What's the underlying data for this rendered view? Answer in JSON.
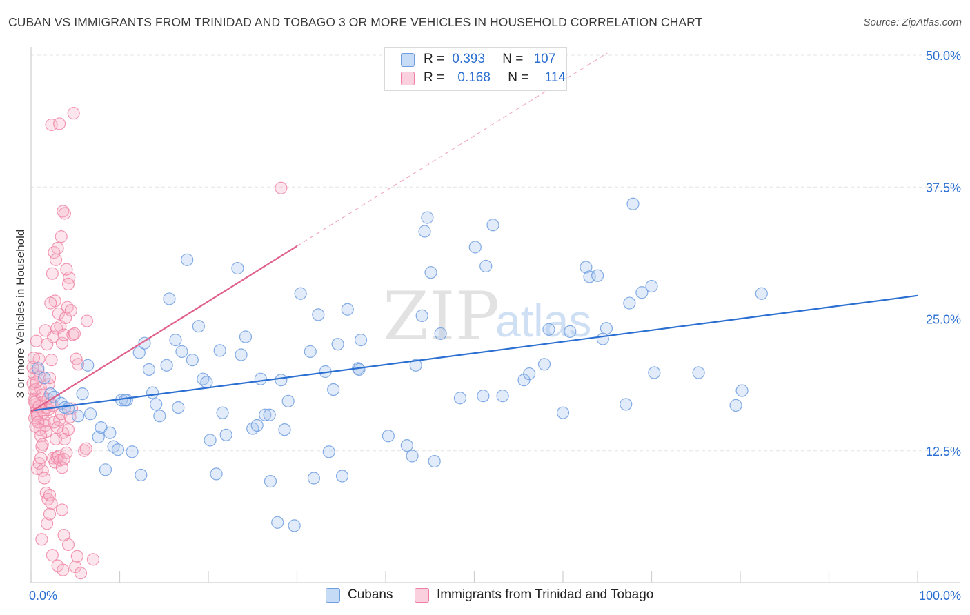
{
  "title": "CUBAN VS IMMIGRANTS FROM TRINIDAD AND TOBAGO 3 OR MORE VEHICLES IN HOUSEHOLD CORRELATION CHART",
  "source": "Source: ZipAtlas.com",
  "watermark": {
    "zip": "ZIP",
    "atlas": "atlas"
  },
  "legend": {
    "rows": [
      {
        "r_label": "R =",
        "r_value": "0.393",
        "n_label": "N =",
        "n_value": "107",
        "color": "#a9c7ef"
      },
      {
        "r_label": "R =",
        "r_value": "0.168",
        "n_label": "N =",
        "n_value": "114",
        "color": "#f7b4c8"
      }
    ]
  },
  "bottom_legend": [
    {
      "label": "Cubans",
      "color": "#a9c7ef"
    },
    {
      "label": "Immigrants from Trinidad and Tobago",
      "color": "#f7b4c8"
    }
  ],
  "chart_data": {
    "type": "scatter",
    "title": "CUBAN VS IMMIGRANTS FROM TRINIDAD AND TOBAGO 3 OR MORE VEHICLES IN HOUSEHOLD CORRELATION CHART",
    "xlabel": "",
    "ylabel": "3 or more Vehicles in Household",
    "xlim": [
      0,
      100
    ],
    "ylim": [
      0,
      50
    ],
    "x_tick_labels": [
      {
        "value": 0,
        "label": "0.0%"
      },
      {
        "value": 100,
        "label": "100.0%"
      }
    ],
    "y_tick_labels": [
      {
        "value": 12.5,
        "label": "12.5%"
      },
      {
        "value": 25,
        "label": "25.0%"
      },
      {
        "value": 37.5,
        "label": "37.5%"
      },
      {
        "value": 50,
        "label": "50.0%"
      }
    ],
    "colors": {
      "cubans": "#6f9ee0",
      "trinidad": "#ef7fa0",
      "cubans_line": "#2a6fd1",
      "trinidad_line": "#e0608a",
      "tick_text": "#2a6fd1",
      "grid": "#e4e4e4"
    },
    "series": [
      {
        "name": "Cubans",
        "trend": {
          "x0": 0,
          "y0": 16.3,
          "x1": 100,
          "y1": 27.2
        },
        "points": [
          [
            0.8,
            20.3
          ],
          [
            1.5,
            19.4
          ],
          [
            2.2,
            17.9
          ],
          [
            2.6,
            17.6
          ],
          [
            3.4,
            17.0
          ],
          [
            3.8,
            16.6
          ],
          [
            4.2,
            16.5
          ],
          [
            5.3,
            15.8
          ],
          [
            5.8,
            17.9
          ],
          [
            6.4,
            20.6
          ],
          [
            6.7,
            16.0
          ],
          [
            7.6,
            13.8
          ],
          [
            7.9,
            14.7
          ],
          [
            8.4,
            10.7
          ],
          [
            8.9,
            14.2
          ],
          [
            9.3,
            12.9
          ],
          [
            9.8,
            12.6
          ],
          [
            10.2,
            17.3
          ],
          [
            10.8,
            17.3
          ],
          [
            11.4,
            12.4
          ],
          [
            12.2,
            21.8
          ],
          [
            12.4,
            10.2
          ],
          [
            12.8,
            22.7
          ],
          [
            13.3,
            20.2
          ],
          [
            13.7,
            18.0
          ],
          [
            14.1,
            16.9
          ],
          [
            14.5,
            15.8
          ],
          [
            15.3,
            20.6
          ],
          [
            15.6,
            26.9
          ],
          [
            16.3,
            23.0
          ],
          [
            16.6,
            16.6
          ],
          [
            17.0,
            21.9
          ],
          [
            17.6,
            30.6
          ],
          [
            18.2,
            21.1
          ],
          [
            18.9,
            24.3
          ],
          [
            19.4,
            19.3
          ],
          [
            19.8,
            19.0
          ],
          [
            20.2,
            13.5
          ],
          [
            20.9,
            10.3
          ],
          [
            21.3,
            22.0
          ],
          [
            21.6,
            16.1
          ],
          [
            22.0,
            14.0
          ],
          [
            23.3,
            29.8
          ],
          [
            23.7,
            21.6
          ],
          [
            24.2,
            23.3
          ],
          [
            25.0,
            14.6
          ],
          [
            25.5,
            14.9
          ],
          [
            25.9,
            19.3
          ],
          [
            26.4,
            15.9
          ],
          [
            27.0,
            9.6
          ],
          [
            27.8,
            5.7
          ],
          [
            28.2,
            19.2
          ],
          [
            28.6,
            14.5
          ],
          [
            29.0,
            17.2
          ],
          [
            29.7,
            5.4
          ],
          [
            30.4,
            27.4
          ],
          [
            31.5,
            21.9
          ],
          [
            31.9,
            9.9
          ],
          [
            32.4,
            25.4
          ],
          [
            33.2,
            20.0
          ],
          [
            33.6,
            12.4
          ],
          [
            34.1,
            18.3
          ],
          [
            34.6,
            22.6
          ],
          [
            35.1,
            10.1
          ],
          [
            35.7,
            25.9
          ],
          [
            36.9,
            20.3
          ],
          [
            37.2,
            23.0
          ],
          [
            37.0,
            20.2
          ],
          [
            40.3,
            13.9
          ],
          [
            42.4,
            13.0
          ],
          [
            43.0,
            12.0
          ],
          [
            43.4,
            20.6
          ],
          [
            44.1,
            25.3
          ],
          [
            44.4,
            33.3
          ],
          [
            44.7,
            34.6
          ],
          [
            45.1,
            29.4
          ],
          [
            45.5,
            11.5
          ],
          [
            46.2,
            23.6
          ],
          [
            48.4,
            17.5
          ],
          [
            50.1,
            31.8
          ],
          [
            51.0,
            17.7
          ],
          [
            51.3,
            30.0
          ],
          [
            52.1,
            33.9
          ],
          [
            53.2,
            17.7
          ],
          [
            55.6,
            19.2
          ],
          [
            56.2,
            19.8
          ],
          [
            57.9,
            20.7
          ],
          [
            58.4,
            24.0
          ],
          [
            60.0,
            16.1
          ],
          [
            60.8,
            23.8
          ],
          [
            62.6,
            29.9
          ],
          [
            63.0,
            29.0
          ],
          [
            63.9,
            29.1
          ],
          [
            64.5,
            23.1
          ],
          [
            64.9,
            24.1
          ],
          [
            67.1,
            16.9
          ],
          [
            67.5,
            26.5
          ],
          [
            67.9,
            35.9
          ],
          [
            68.9,
            27.5
          ],
          [
            70.0,
            28.1
          ],
          [
            70.3,
            19.9
          ],
          [
            75.3,
            19.9
          ],
          [
            79.5,
            16.8
          ],
          [
            80.2,
            18.2
          ],
          [
            82.4,
            27.4
          ],
          [
            10.6,
            17.3
          ],
          [
            26.9,
            15.9
          ]
        ]
      },
      {
        "name": "Immigrants from Trinidad and Tobago",
        "trend": {
          "x0": 0,
          "y0": 16.2,
          "x1": 30,
          "y1": 31.9,
          "dashed_to": {
            "x": 65,
            "y": 50.2
          }
        },
        "points": [
          [
            0.2,
            18.9
          ],
          [
            0.3,
            18.2
          ],
          [
            0.4,
            17.4
          ],
          [
            0.5,
            16.9
          ],
          [
            0.6,
            16.3
          ],
          [
            0.7,
            15.8
          ],
          [
            0.3,
            19.8
          ],
          [
            0.8,
            20.1
          ],
          [
            0.9,
            21.2
          ],
          [
            1.0,
            19.5
          ],
          [
            1.1,
            18.4
          ],
          [
            1.2,
            17.8
          ],
          [
            1.3,
            17.1
          ],
          [
            1.4,
            16.1
          ],
          [
            1.5,
            15.3
          ],
          [
            1.6,
            14.9
          ],
          [
            0.4,
            15.6
          ],
          [
            0.5,
            14.8
          ],
          [
            0.6,
            22.9
          ],
          [
            1.7,
            14.3
          ],
          [
            1.8,
            16.6
          ],
          [
            1.9,
            17.4
          ],
          [
            2.0,
            18.8
          ],
          [
            2.1,
            19.4
          ],
          [
            0.7,
            10.8
          ],
          [
            0.9,
            11.3
          ],
          [
            1.1,
            11.8
          ],
          [
            1.3,
            10.6
          ],
          [
            1.5,
            9.9
          ],
          [
            1.7,
            8.5
          ],
          [
            1.9,
            7.9
          ],
          [
            2.1,
            8.3
          ],
          [
            2.3,
            7.5
          ],
          [
            2.5,
            11.8
          ],
          [
            2.7,
            11.4
          ],
          [
            2.9,
            11.9
          ],
          [
            3.1,
            12.0
          ],
          [
            3.3,
            11.6
          ],
          [
            3.5,
            10.9
          ],
          [
            3.7,
            11.7
          ],
          [
            2.3,
            21.1
          ],
          [
            2.5,
            23.3
          ],
          [
            2.7,
            26.7
          ],
          [
            2.9,
            24.1
          ],
          [
            3.1,
            25.5
          ],
          [
            3.3,
            24.3
          ],
          [
            3.5,
            22.7
          ],
          [
            3.7,
            23.5
          ],
          [
            1.6,
            23.9
          ],
          [
            1.8,
            22.6
          ],
          [
            2.2,
            26.5
          ],
          [
            3.9,
            25.1
          ],
          [
            4.1,
            26.1
          ],
          [
            4.3,
            28.9
          ],
          [
            4.5,
            25.8
          ],
          [
            2.4,
            29.3
          ],
          [
            2.6,
            31.3
          ],
          [
            2.8,
            30.6
          ],
          [
            3.0,
            31.7
          ],
          [
            4.7,
            23.5
          ],
          [
            4.9,
            23.6
          ],
          [
            5.1,
            21.2
          ],
          [
            5.3,
            20.7
          ],
          [
            3.4,
            32.8
          ],
          [
            3.6,
            35.2
          ],
          [
            3.8,
            35.0
          ],
          [
            4.0,
            29.7
          ],
          [
            4.2,
            28.3
          ],
          [
            6.3,
            24.8
          ],
          [
            2.3,
            43.4
          ],
          [
            3.2,
            43.5
          ],
          [
            4.8,
            44.5
          ],
          [
            28.2,
            37.4
          ],
          [
            2.0,
            16.4
          ],
          [
            2.2,
            17.0
          ],
          [
            2.4,
            16.8
          ],
          [
            2.6,
            15.2
          ],
          [
            2.8,
            13.6
          ],
          [
            3.0,
            14.7
          ],
          [
            3.2,
            15.4
          ],
          [
            3.4,
            16.0
          ],
          [
            3.6,
            14.2
          ],
          [
            3.8,
            13.6
          ],
          [
            4.0,
            12.3
          ],
          [
            4.2,
            14.5
          ],
          [
            4.4,
            15.7
          ],
          [
            4.6,
            16.5
          ],
          [
            6.0,
            12.5
          ],
          [
            6.2,
            12.7
          ],
          [
            1.2,
            4.1
          ],
          [
            1.8,
            5.6
          ],
          [
            2.4,
            2.6
          ],
          [
            3.0,
            1.6
          ],
          [
            3.6,
            1.2
          ],
          [
            4.2,
            3.6
          ],
          [
            5.0,
            1.5
          ],
          [
            5.2,
            2.5
          ],
          [
            5.6,
            0.9
          ],
          [
            7.0,
            2.2
          ],
          [
            0.2,
            20.4
          ],
          [
            0.3,
            21.3
          ],
          [
            0.4,
            17.1
          ],
          [
            0.5,
            18.3
          ],
          [
            0.6,
            19.0
          ],
          [
            0.7,
            16.0
          ],
          [
            0.8,
            15.2
          ],
          [
            0.9,
            16.7
          ],
          [
            1.0,
            14.5
          ],
          [
            1.1,
            13.9
          ],
          [
            1.2,
            12.9
          ],
          [
            1.3,
            13.1
          ],
          [
            3.5,
            6.9
          ],
          [
            3.7,
            4.5
          ],
          [
            2.1,
            6.5
          ]
        ]
      }
    ]
  }
}
